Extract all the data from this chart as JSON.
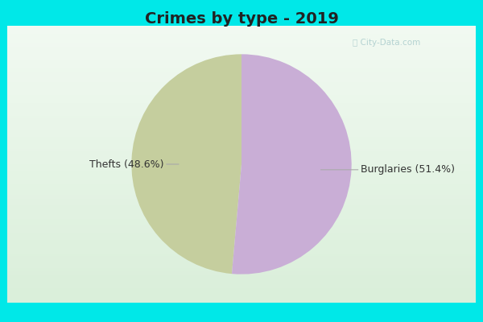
{
  "title": "Crimes by type - 2019",
  "slices": [
    48.6,
    51.4
  ],
  "labels": [
    "Thefts",
    "Burglaries"
  ],
  "percentages": [
    "48.6%",
    "51.4%"
  ],
  "colors": [
    "#c5ce9e",
    "#c9aed6"
  ],
  "bg_cyan": "#00e8e8",
  "bg_chart": "#e0f0e0",
  "bg_white_border": "#f0f8f0",
  "startangle": 90,
  "title_fontsize": 14,
  "label_fontsize": 9,
  "title_color": "#222222",
  "label_color": "#333333"
}
